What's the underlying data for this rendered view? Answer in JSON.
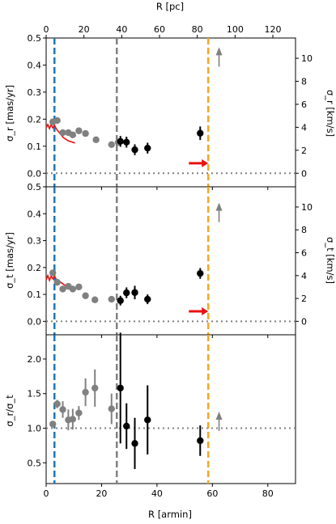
{
  "chart_data": [
    {
      "type": "scatter",
      "panel": "top",
      "ylabel": "σ_r [mas/yr]",
      "ylabel_right": "σ_r [km/s]",
      "top_xlabel": "R [pc]",
      "ylim": [
        -0.05,
        0.5
      ],
      "yticks": [
        "0.0",
        "0.1",
        "0.2",
        "0.3",
        "0.4",
        "0.5"
      ],
      "right_yticks": [
        "0",
        "2",
        "4",
        "6",
        "8",
        "10"
      ],
      "top_xticks": [
        "0",
        "20",
        "40",
        "60",
        "80",
        "100",
        "120"
      ],
      "series": [
        {
          "color": "#808080",
          "points": [
            {
              "x": 2.4,
              "y": 0.19
            },
            {
              "x": 4.0,
              "y": 0.195
            },
            {
              "x": 6.0,
              "y": 0.15
            },
            {
              "x": 8.0,
              "y": 0.15
            },
            {
              "x": 9.6,
              "y": 0.142
            },
            {
              "x": 11.8,
              "y": 0.157
            },
            {
              "x": 14.2,
              "y": 0.147
            },
            {
              "x": 18.0,
              "y": 0.124
            },
            {
              "x": 23.6,
              "y": 0.106
            },
            {
              "x": 26.0,
              "y": 0.114
            }
          ]
        },
        {
          "color": "#000000",
          "points": [
            {
              "x": 26.8,
              "y": 0.118,
              "err": 0.02
            },
            {
              "x": 29.0,
              "y": 0.115,
              "err": 0.02
            },
            {
              "x": 32.0,
              "y": 0.087,
              "err": 0.02
            },
            {
              "x": 36.6,
              "y": 0.093,
              "err": 0.02
            },
            {
              "x": 55.6,
              "y": 0.148,
              "err": 0.025
            }
          ]
        }
      ],
      "upper_arrow": {
        "x": 62.4,
        "y": 0.43
      },
      "red_arrow": {
        "x0": 51.5,
        "x1": 58.5,
        "y": 0.037
      },
      "red_curve": [
        [
          0,
          0.17
        ],
        [
          0.6,
          0.18
        ],
        [
          1.2,
          0.165
        ],
        [
          1.8,
          0.18
        ],
        [
          2.4,
          0.168
        ],
        [
          3.0,
          0.178
        ],
        [
          3.6,
          0.165
        ],
        [
          4.6,
          0.152
        ],
        [
          6.2,
          0.132
        ],
        [
          8.0,
          0.12
        ],
        [
          10.4,
          0.112
        ]
      ],
      "reference_level": 0.0
    },
    {
      "type": "scatter",
      "panel": "middle",
      "ylabel": "σ_t [mas/yr]",
      "ylabel_right": "σ_t [km/s]",
      "ylim": [
        -0.05,
        0.5
      ],
      "yticks": [
        "0.0",
        "0.1",
        "0.2",
        "0.3",
        "0.4",
        "0.5"
      ],
      "right_yticks": [
        "0",
        "2",
        "4",
        "6",
        "8",
        "10"
      ],
      "series": [
        {
          "color": "#808080",
          "points": [
            {
              "x": 2.4,
              "y": 0.18
            },
            {
              "x": 4.0,
              "y": 0.145
            },
            {
              "x": 6.0,
              "y": 0.12
            },
            {
              "x": 8.0,
              "y": 0.13
            },
            {
              "x": 9.6,
              "y": 0.12
            },
            {
              "x": 11.8,
              "y": 0.128
            },
            {
              "x": 14.2,
              "y": 0.095
            },
            {
              "x": 17.6,
              "y": 0.08
            },
            {
              "x": 23.6,
              "y": 0.082
            }
          ]
        },
        {
          "color": "#000000",
          "points": [
            {
              "x": 26.8,
              "y": 0.077,
              "err": 0.018
            },
            {
              "x": 29.0,
              "y": 0.106,
              "err": 0.02
            },
            {
              "x": 32.0,
              "y": 0.107,
              "err": 0.025
            },
            {
              "x": 36.6,
              "y": 0.082,
              "err": 0.018
            },
            {
              "x": 55.6,
              "y": 0.178,
              "err": 0.02
            }
          ]
        }
      ],
      "upper_arrow": {
        "x": 62.4,
        "y": 0.405
      },
      "red_arrow": {
        "x0": 51.5,
        "x1": 58.5,
        "y": 0.037
      },
      "red_curve": [
        [
          0,
          0.155
        ],
        [
          0.6,
          0.17
        ],
        [
          1.2,
          0.152
        ],
        [
          1.8,
          0.168
        ],
        [
          2.4,
          0.158
        ],
        [
          3.0,
          0.168
        ],
        [
          3.6,
          0.157
        ],
        [
          4.6,
          0.15
        ],
        [
          6.2,
          0.138
        ],
        [
          8.0,
          0.125
        ],
        [
          10.4,
          0.115
        ]
      ],
      "reference_level": 0.0
    },
    {
      "type": "scatter",
      "panel": "bottom",
      "ylabel": "σ_r/σ_t",
      "xlabel": "R [armin]",
      "xlim": [
        0,
        90
      ],
      "ylim": [
        0.2,
        2.35
      ],
      "xticks": [
        "0",
        "20",
        "40",
        "60",
        "80"
      ],
      "yticks": [
        "0.5",
        "1.0",
        "1.5",
        "2.0"
      ],
      "series": [
        {
          "color": "#808080",
          "points": [
            {
              "x": 2.4,
              "y": 1.06,
              "err": 0.0
            },
            {
              "x": 4.0,
              "y": 1.35,
              "err": 0.06
            },
            {
              "x": 6.0,
              "y": 1.27,
              "err": 0.12
            },
            {
              "x": 8.0,
              "y": 1.12,
              "err": 0.15
            },
            {
              "x": 9.6,
              "y": 1.13,
              "err": 0.15
            },
            {
              "x": 11.8,
              "y": 1.22,
              "err": 0.1
            },
            {
              "x": 14.2,
              "y": 1.52,
              "err": 0.2
            },
            {
              "x": 17.6,
              "y": 1.58,
              "err": 0.27
            },
            {
              "x": 23.6,
              "y": 1.28,
              "err": 0.22
            }
          ]
        },
        {
          "color": "#000000",
          "points": [
            {
              "x": 26.8,
              "y": 1.58,
              "err": 0.8
            },
            {
              "x": 29.0,
              "y": 1.03,
              "err": 0.33
            },
            {
              "x": 32.0,
              "y": 0.78,
              "err": 0.37
            },
            {
              "x": 36.6,
              "y": 1.12,
              "err": 0.5
            },
            {
              "x": 55.6,
              "y": 0.82,
              "err": 0.22
            }
          ]
        }
      ],
      "upper_arrow": {
        "x": 62.4,
        "y": 1.1
      },
      "reference_level": 1.0
    }
  ],
  "vertical_lines": [
    {
      "x": 3.0,
      "color": "#1f77b4"
    },
    {
      "x": 25.5,
      "color": "#808080"
    },
    {
      "x": 58.5,
      "color": "#f5a623"
    }
  ]
}
